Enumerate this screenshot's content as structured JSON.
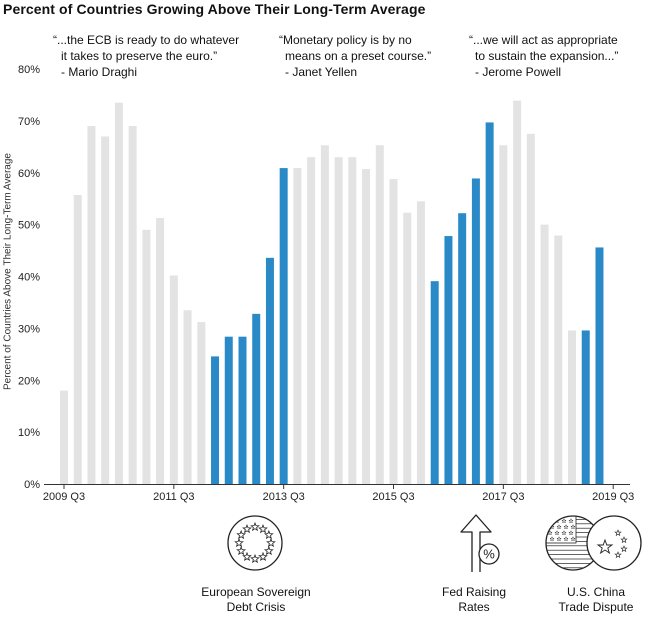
{
  "title": "Percent of Countries Growing Above Their Long-Term Average",
  "quotes": [
    {
      "text1": "“...the ECB is ready to do whatever",
      "text2": "it takes to preserve the euro.”",
      "author": "- Mario Draghi"
    },
    {
      "text1": "“Monetary policy is by no",
      "text2": "means on a preset course.”",
      "author": "- Janet Yellen"
    },
    {
      "text1": "“...we will act as appropriate",
      "text2": "to sustain the expansion...”",
      "author": "- Jerome Powell"
    }
  ],
  "events": [
    {
      "line1": "European Sovereign",
      "line2": "Debt Crisis",
      "icon": "eu-flag-icon"
    },
    {
      "line1": "Fed Raising",
      "line2": "Rates",
      "icon": "arrow-percent-icon"
    },
    {
      "line1": "U.S. China",
      "line2": "Trade Dispute",
      "icon": "us-china-flags-icon"
    }
  ],
  "colors": {
    "gray": "#e3e3e3",
    "blue": "#2a8ac8",
    "axis": "#333333"
  },
  "chart_data": {
    "type": "bar",
    "title": "Percent of Countries Growing Above Their Long-Term Average",
    "ylabel": "Percent of Countries Above Their Long-Term Average",
    "xlabel": "",
    "ylim": [
      0,
      80
    ],
    "yticks": [
      "0%",
      "10%",
      "20%",
      "30%",
      "40%",
      "50%",
      "60%",
      "70%",
      "80%"
    ],
    "x_tick_labels": [
      {
        "index": 0,
        "label": "2009 Q3"
      },
      {
        "index": 8,
        "label": "2011 Q3"
      },
      {
        "index": 16,
        "label": "2013 Q3"
      },
      {
        "index": 24,
        "label": "2015 Q3"
      },
      {
        "index": 32,
        "label": "2017 Q3"
      },
      {
        "index": 40,
        "label": "2019 Q3"
      }
    ],
    "values": [
      18,
      55.7,
      69,
      67,
      73.5,
      69,
      49,
      51.3,
      40.2,
      33.5,
      31.2,
      24.6,
      28.4,
      28.4,
      32.8,
      43.6,
      60.9,
      60.9,
      63,
      65.3,
      63,
      63,
      60.7,
      65.3,
      58.8,
      52.3,
      54.5,
      39.1,
      47.8,
      52.2,
      58.9,
      69.7,
      65.3,
      73.9,
      67.5,
      50,
      47.9,
      29.6,
      29.6,
      45.6
    ],
    "highlight": [
      11,
      12,
      13,
      14,
      15,
      16,
      27,
      28,
      29,
      30,
      31,
      38,
      39
    ],
    "grid": false
  }
}
